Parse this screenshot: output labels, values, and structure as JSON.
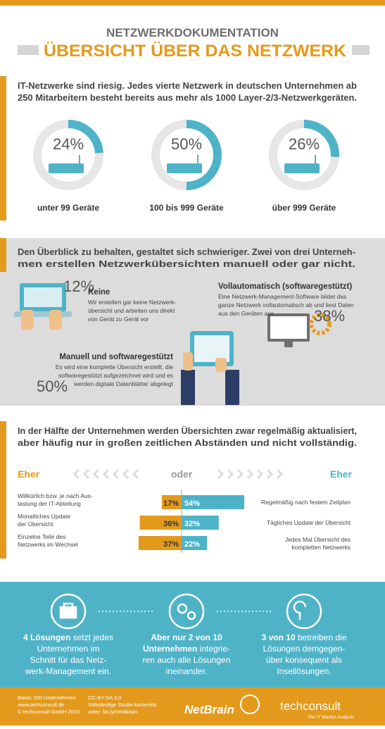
{
  "header": {
    "title": "NETZWERKDOKUMENTATION",
    "subtitle": "ÜBERSICHT ÜBER DAS NETZWERK"
  },
  "section1": {
    "intro": [
      "IT-Netzwerke sind riesig. Jedes vierte Netzwerk in deutschen Unternehmen ab",
      "250 Mitarbeitern besteht bereits aus mehr als 1000 Layer-2/3-Netzwerkgeräten."
    ],
    "color": "#4fb3c8",
    "donuts": [
      {
        "value": 24,
        "label": "24%",
        "caption": "unter 99 Geräte"
      },
      {
        "value": 50,
        "label": "50%",
        "caption": "100 bis 999 Geräte"
      },
      {
        "value": 26,
        "label": "26%",
        "caption": "über 999 Geräte"
      }
    ]
  },
  "section2": {
    "intro": [
      "Den Überblick zu behalten, gestaltet sich schwieriger. Zwei von drei Unterneh-",
      "men erstellen Netzwerkübersichten manuell oder gar nicht."
    ],
    "items": [
      {
        "percent": "12%",
        "title": "Keine",
        "text": [
          "Wir erstellen gar keine Netzwerk-",
          "übersicht und arbeiten uns direkt",
          "von Gerät zu Gerät vor"
        ]
      },
      {
        "percent": "38%",
        "title": "Vollautomatisch (softwaregestützt)",
        "text": [
          "Eine Netzwerk-Management-Software bildet das",
          "ganze Netzwerk vollautomatisch ab und liest Daten",
          "aus den Geräten aus"
        ]
      },
      {
        "percent": "50%",
        "title": "Manuell und softwaregestützt",
        "text": [
          "Es wird eine komplette Übersicht erstellt, die",
          "softwaregestützt aufgezeichnet wird und es",
          "werden digitale Datenblätter abgelegt"
        ]
      }
    ]
  },
  "section3": {
    "intro": [
      "In der Hälfte der Unternehmen werden Übersichten zwar regelmäßig aktualisiert,",
      "aber häufig nur in großen zeitlichen Abständen und nicht vollständig."
    ],
    "left_heading": "Eher",
    "middle": "oder",
    "right_heading": "Eher",
    "left_color": "#e39a1c",
    "right_color": "#4fb3c8",
    "rows": [
      {
        "left": [
          "Willkürlich bzw. je nach Aus-",
          "lastung der IT-Abteilung"
        ],
        "left_value": 17,
        "left_label": "17%",
        "right": [
          "Regelmäßig nach festem Zeitplan"
        ],
        "right_value": 54,
        "right_label": "54%"
      },
      {
        "left": [
          "Monatliches Update",
          "der Übersicht"
        ],
        "left_value": 36,
        "left_label": "36%",
        "right": [
          "Tägliches Update der Übersicht"
        ],
        "right_value": 32,
        "right_label": "32%"
      },
      {
        "left": [
          "Einzelne Teile des",
          "Netzwerks im Wechsel"
        ],
        "left_value": 37,
        "left_label": "37%",
        "right": [
          "Jedes Mal Übersicht des",
          "kompletten Netzwerks"
        ],
        "right_value": 22,
        "right_label": "22%"
      }
    ]
  },
  "section4": {
    "items": [
      {
        "lines": [
          [
            {
              "bold": "4 Lösungen"
            },
            " setzt jedes"
          ],
          [
            "Unternehmen im"
          ],
          [
            "Schnitt  für das Netz-"
          ],
          [
            "werk-Management ein."
          ]
        ]
      },
      {
        "lines": [
          [
            {
              "bold": "Aber nur 2 von 10"
            }
          ],
          [
            {
              "bold": "Unternehmen"
            },
            " integrie-"
          ],
          [
            "ren auch alle Lösungen"
          ],
          [
            "ineinander."
          ]
        ]
      },
      {
        "lines": [
          [
            {
              "bold": "3 von 10"
            },
            " betreiben die"
          ],
          [
            "Lösungen demgegen-"
          ],
          [
            "über konsequent als"
          ],
          [
            "Insellösungen."
          ]
        ]
      }
    ]
  },
  "footer": {
    "left": [
      "Basis: 200 Unternehmen",
      "www.techconsult.de",
      "© techconsult GmbH 2018"
    ],
    "middle": [
      "CC-BY-SA 3.0",
      "Vollständige Studie kostenlos",
      "unter: bit.ly/net4brain"
    ],
    "logo1": "NetBrain",
    "logo2": "techconsult",
    "logo2_tagline": "The IT Market Analysts"
  }
}
